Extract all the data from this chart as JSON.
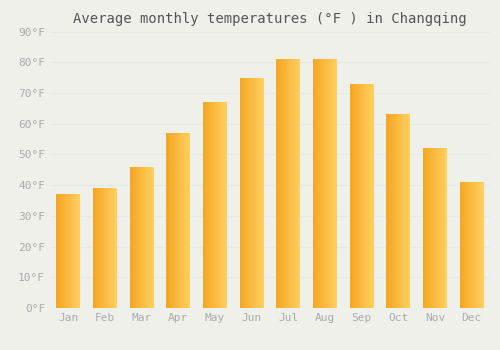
{
  "title": "Average monthly temperatures (°F ) in Changqing",
  "months": [
    "Jan",
    "Feb",
    "Mar",
    "Apr",
    "May",
    "Jun",
    "Jul",
    "Aug",
    "Sep",
    "Oct",
    "Nov",
    "Dec"
  ],
  "values": [
    37,
    39,
    46,
    57,
    67,
    75,
    81,
    81,
    73,
    63,
    52,
    41
  ],
  "ylim": [
    0,
    90
  ],
  "yticks": [
    0,
    10,
    20,
    30,
    40,
    50,
    60,
    70,
    80,
    90
  ],
  "ytick_labels": [
    "0°F",
    "10°F",
    "20°F",
    "30°F",
    "40°F",
    "50°F",
    "60°F",
    "70°F",
    "80°F",
    "90°F"
  ],
  "background_color": "#f0f0eb",
  "grid_color": "#e8e8e8",
  "bar_color_left": "#F5A623",
  "bar_color_right": "#FFD060",
  "title_color": "#555555",
  "tick_color": "#aaaaaa",
  "title_fontsize": 10,
  "tick_fontsize": 8,
  "bar_width": 0.65,
  "gradient_steps": 50
}
